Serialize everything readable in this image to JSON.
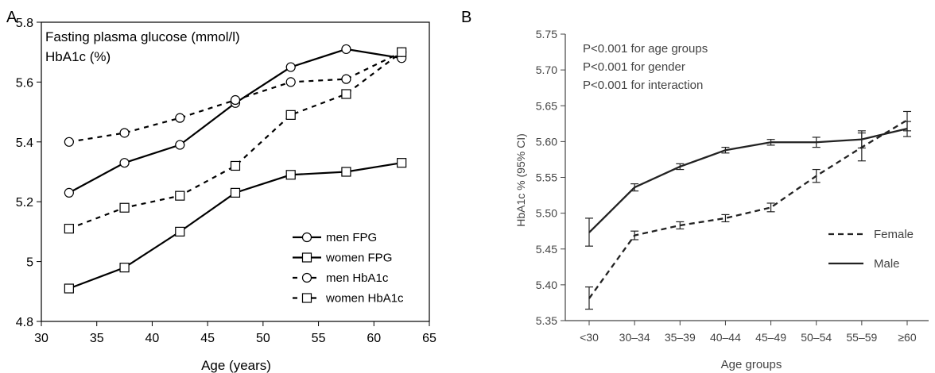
{
  "chart_data": [
    {
      "panel_label": "A",
      "type": "line",
      "annotations": [
        "Fasting plasma glucose (mmol/l)",
        "HbA1c (%)"
      ],
      "xlabel": "Age (years)",
      "ylabel": "",
      "xlim": [
        30,
        65
      ],
      "ylim": [
        4.8,
        5.8
      ],
      "x_ticks": [
        "30",
        "35",
        "40",
        "45",
        "50",
        "55",
        "60",
        "65"
      ],
      "y_ticks": [
        "4.8",
        "5",
        "5.2",
        "5.4",
        "5.6",
        "5.8"
      ],
      "x": [
        32.5,
        37.5,
        42.5,
        47.5,
        52.5,
        57.5,
        62.5
      ],
      "grid": false,
      "legend_position": "bottom-right",
      "series": [
        {
          "name": "men FPG",
          "line": "solid",
          "marker": "circle",
          "values": [
            5.23,
            5.33,
            5.39,
            5.53,
            5.65,
            5.71,
            5.68
          ]
        },
        {
          "name": "women FPG",
          "line": "solid",
          "marker": "square",
          "values": [
            4.91,
            4.98,
            5.1,
            5.23,
            5.29,
            5.3,
            5.33
          ]
        },
        {
          "name": "men HbA1c",
          "line": "dashed",
          "marker": "circle",
          "values": [
            5.4,
            5.43,
            5.48,
            5.54,
            5.6,
            5.61,
            5.7
          ]
        },
        {
          "name": "women HbA1c",
          "line": "dashed",
          "marker": "square",
          "values": [
            5.11,
            5.18,
            5.22,
            5.32,
            5.49,
            5.56,
            5.7
          ]
        }
      ]
    },
    {
      "panel_label": "B",
      "type": "line",
      "annotations": [
        "P<0.001 for age groups",
        "P<0.001 for gender",
        "P<0.001 for interaction"
      ],
      "xlabel": "Age groups",
      "ylabel": "HbA1c % (95% CI)",
      "ylim": [
        5.35,
        5.75
      ],
      "y_ticks": [
        "5.35",
        "5.40",
        "5.45",
        "5.50",
        "5.55",
        "5.60",
        "5.65",
        "5.70",
        "5.75"
      ],
      "categories": [
        "<30",
        "30–34",
        "35–39",
        "40–44",
        "45–49",
        "50–54",
        "55–59",
        "≥60"
      ],
      "grid": false,
      "legend_position": "bottom-right",
      "series": [
        {
          "name": "Female",
          "line": "dashed",
          "values": [
            5.381,
            5.469,
            5.483,
            5.493,
            5.508,
            5.552,
            5.592,
            5.63
          ],
          "ci_low": [
            5.366,
            5.463,
            5.478,
            5.488,
            5.502,
            5.543,
            5.573,
            5.615
          ],
          "ci_high": [
            5.397,
            5.475,
            5.488,
            5.498,
            5.514,
            5.561,
            5.612,
            5.642
          ]
        },
        {
          "name": "Male",
          "line": "solid",
          "values": [
            5.473,
            5.536,
            5.565,
            5.588,
            5.599,
            5.599,
            5.603,
            5.618
          ],
          "ci_low": [
            5.454,
            5.531,
            5.561,
            5.584,
            5.595,
            5.592,
            5.591,
            5.607
          ],
          "ci_high": [
            5.493,
            5.541,
            5.569,
            5.592,
            5.603,
            5.606,
            5.615,
            5.628
          ]
        }
      ]
    }
  ]
}
